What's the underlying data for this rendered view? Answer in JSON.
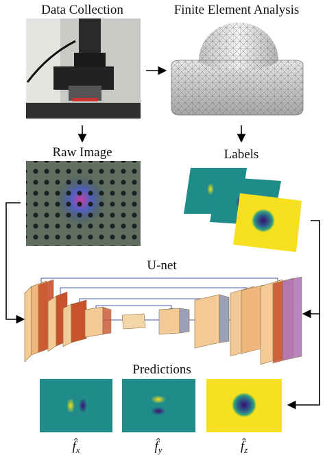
{
  "panels": {
    "data_collection": "Data Collection",
    "fea": "Finite Element Analysis",
    "raw_image": "Raw Image",
    "labels": "Labels",
    "unet": "U-net",
    "predictions": "Predictions"
  },
  "outputs": [
    {
      "symbol": "f̂",
      "subscript": "x"
    },
    {
      "symbol": "f̂",
      "subscript": "y"
    },
    {
      "symbol": "f̂",
      "subscript": "z"
    }
  ]
}
